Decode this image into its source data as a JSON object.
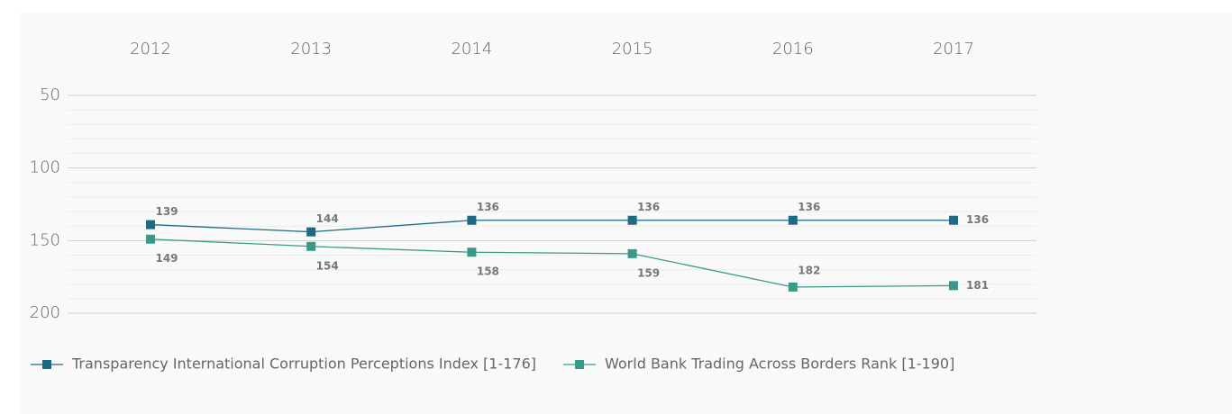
{
  "chart_data": {
    "type": "line",
    "categories": [
      "2012",
      "2013",
      "2014",
      "2015",
      "2016",
      "2017"
    ],
    "series": [
      {
        "name": "Transparency International Corruption Perceptions Index [1-176]",
        "color": "#1d6a85",
        "values": [
          139,
          144,
          136,
          136,
          136,
          136
        ]
      },
      {
        "name": "World Bank Trading Across Borders Rank [1-190]",
        "color": "#3a9a89",
        "values": [
          149,
          154,
          158,
          159,
          182,
          181
        ]
      }
    ],
    "ylim": [
      50,
      200
    ],
    "inverted_y": true,
    "yticks": [
      50,
      100,
      150,
      200
    ],
    "minor_yticks": [
      60,
      70,
      80,
      90,
      110,
      120,
      130,
      140,
      160,
      170,
      180,
      190
    ],
    "grid": true,
    "legend": "bottom-left"
  }
}
